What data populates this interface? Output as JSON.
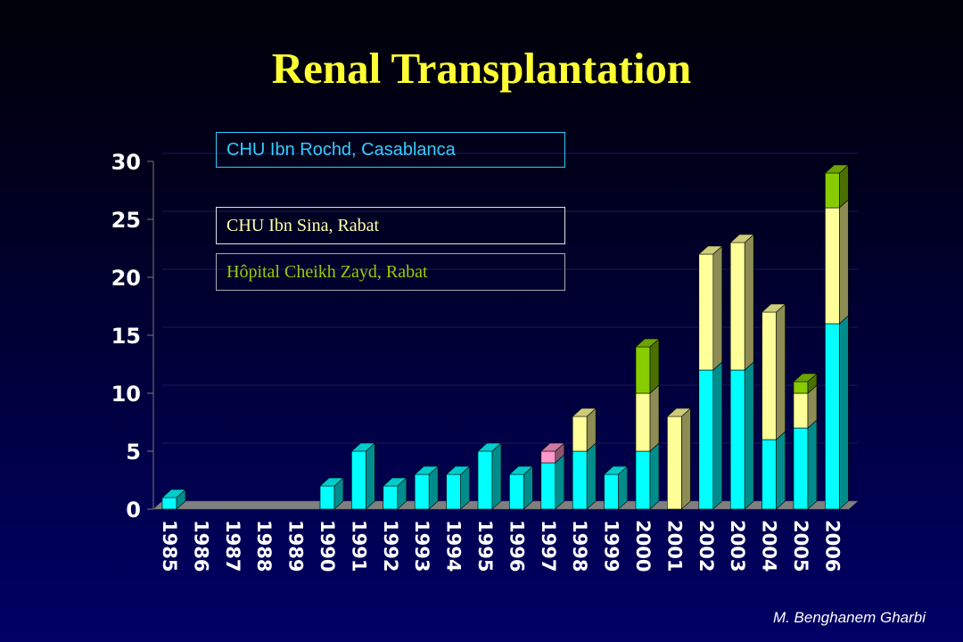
{
  "title": "Renal Transplantation",
  "author": "M. Benghanem Gharbi",
  "legend": [
    {
      "label": "CHU Ibn Rochd, Casablanca",
      "color": "#00ffff"
    },
    {
      "label": "CHU Ibn Sina, Rabat",
      "color": "#ffff99"
    },
    {
      "label": "Hôpital Cheikh Zayd, Rabat",
      "color": "#88cc00"
    }
  ],
  "chart_data": {
    "type": "bar",
    "stacked": true,
    "three_d": true,
    "title": "Renal Transplantation",
    "categories": [
      "1985",
      "1986",
      "1987",
      "1988",
      "1989",
      "1990",
      "1991",
      "1992",
      "1993",
      "1994",
      "1995",
      "1996",
      "1997",
      "1998",
      "1999",
      "2000",
      "2001",
      "2002",
      "2003",
      "2004",
      "2005",
      "2006"
    ],
    "ylim": [
      0,
      30
    ],
    "yticks": [
      0,
      5,
      10,
      15,
      20,
      25,
      30
    ],
    "grid": true,
    "series": [
      {
        "name": "CHU Ibn Rochd, Casablanca",
        "color": "#00ffff",
        "values": [
          1,
          0,
          0,
          0,
          0,
          2,
          5,
          2,
          3,
          3,
          5,
          3,
          4,
          5,
          3,
          5,
          0,
          12,
          12,
          6,
          7,
          16
        ]
      },
      {
        "name": "",
        "color": "#ff99cc",
        "values": [
          0,
          0,
          0,
          0,
          0,
          0,
          0,
          0,
          0,
          0,
          0,
          0,
          1,
          0,
          0,
          0,
          0,
          0,
          0,
          0,
          0,
          0
        ]
      },
      {
        "name": "CHU Ibn Sina, Rabat",
        "color": "#ffff99",
        "values": [
          0,
          0,
          0,
          0,
          0,
          0,
          0,
          0,
          0,
          0,
          0,
          0,
          0,
          3,
          0,
          5,
          8,
          10,
          11,
          11,
          3,
          10
        ]
      },
      {
        "name": "Hôpital Cheikh Zayd, Rabat",
        "color": "#88cc00",
        "values": [
          0,
          0,
          0,
          0,
          0,
          0,
          0,
          0,
          0,
          0,
          0,
          0,
          0,
          0,
          0,
          4,
          0,
          0,
          0,
          0,
          1,
          3
        ]
      }
    ]
  }
}
